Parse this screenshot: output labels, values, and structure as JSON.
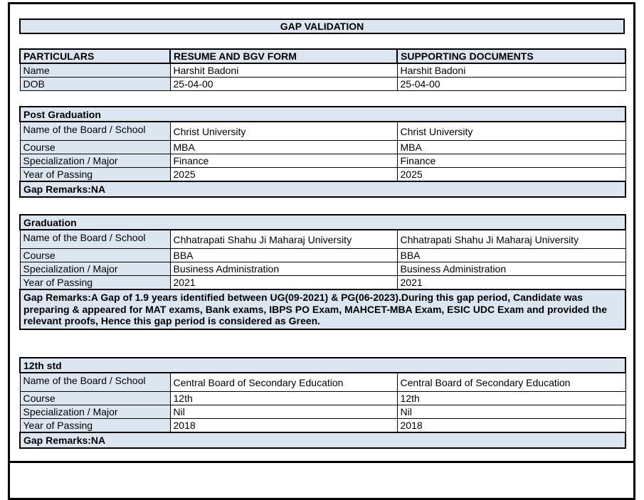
{
  "title": "GAP VALIDATION",
  "columns": [
    "PARTICULARS",
    "RESUME AND BGV FORM",
    "SUPPORTING DOCUMENTS"
  ],
  "identity": {
    "rows": [
      {
        "label": "Name",
        "resume": "Harshit Badoni",
        "supporting": "Harshit Badoni"
      },
      {
        "label": "DOB",
        "resume": "25-04-00",
        "supporting": "25-04-00"
      }
    ]
  },
  "sections": [
    {
      "title": "Post Graduation",
      "rows": [
        {
          "label": "Name of the Board / School",
          "resume": "Christ University",
          "supporting": "Christ University"
        },
        {
          "label": "Course",
          "resume": "MBA",
          "supporting": "MBA"
        },
        {
          "label": "Specialization / Major",
          "resume": "Finance",
          "supporting": "Finance"
        },
        {
          "label": "Year of Passing",
          "resume": "2025",
          "supporting": "2025"
        }
      ],
      "gap_remarks": "Gap Remarks:NA"
    },
    {
      "title": "Graduation",
      "rows": [
        {
          "label": "Name of the Board / School",
          "resume": "Chhatrapati Shahu Ji Maharaj University",
          "supporting": "Chhatrapati Shahu Ji Maharaj University"
        },
        {
          "label": "Course",
          "resume": "BBA",
          "supporting": "BBA"
        },
        {
          "label": "Specialization / Major",
          "resume": "Business Administration",
          "supporting": "Business Administration"
        },
        {
          "label": "Year of Passing",
          "resume": "2021",
          "supporting": "2021"
        }
      ],
      "gap_remarks": "Gap Remarks:A Gap of 1.9 years identified between UG(09-2021) & PG(06-2023).During this gap period, Candidate was preparing & appeared for MAT exams, Bank exams, IBPS PO Exam, MAHCET-MBA Exam, ESIC UDC Exam and provided the relevant proofs, Hence this gap period is considered as Green."
    },
    {
      "title": "12th std",
      "rows": [
        {
          "label": "Name of the Board / School",
          "resume": "Central Board of Secondary Education",
          "supporting": "Central Board of Secondary Education"
        },
        {
          "label": "Course",
          "resume": "12th",
          "supporting": "12th"
        },
        {
          "label": "Specialization / Major",
          "resume": "Nil",
          "supporting": "Nil"
        },
        {
          "label": "Year of Passing",
          "resume": "2018",
          "supporting": "2018"
        }
      ],
      "gap_remarks": "Gap Remarks:NA"
    }
  ],
  "colors": {
    "header_bg": "#dce6f1",
    "border": "#000000",
    "page_bg": "#ffffff",
    "text": "#000000"
  }
}
